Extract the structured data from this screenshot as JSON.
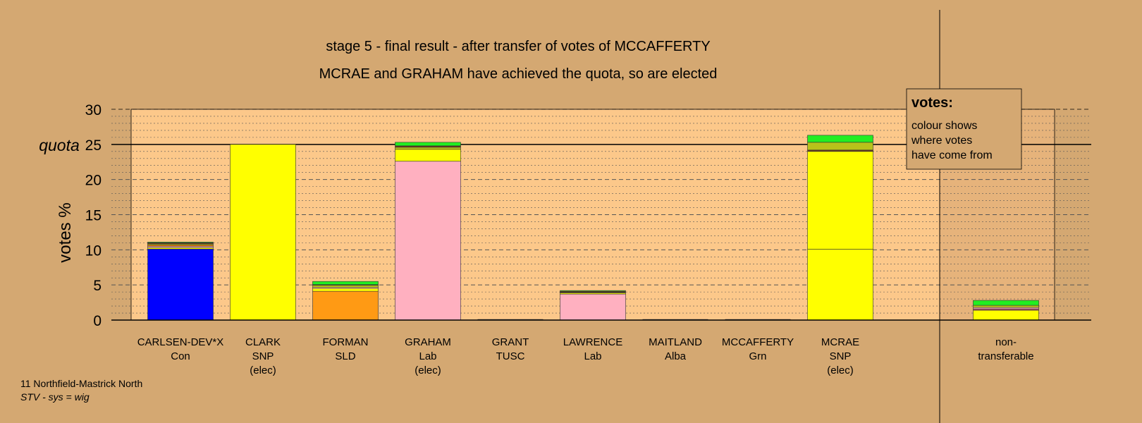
{
  "chart_data": {
    "type": "bar",
    "stacked": true,
    "title": "stage 5 - final result - after transfer of votes of MCCAFFERTY",
    "subtitle": "MCRAE and GRAHAM have achieved the quota, so are elected",
    "ylabel": "votes %",
    "quota_label": "quota",
    "quota": 25,
    "ylim": [
      0,
      30
    ],
    "yticks": [
      "0",
      "5",
      "10",
      "15",
      "20",
      "25",
      "30"
    ],
    "candidates": [
      {
        "name": "CARLSEN-DEV*X",
        "party": "Con",
        "status": "",
        "segments": [
          {
            "value": 10.1,
            "color": "#0000ff"
          },
          {
            "value": 0.2,
            "color": "#ffff00"
          },
          {
            "value": 0.2,
            "color": "#ffb6c1"
          },
          {
            "value": 0.2,
            "color": "#ff8c00"
          },
          {
            "value": 0.15,
            "color": "#b8c21a"
          },
          {
            "value": 0.15,
            "color": "#6a3a1e"
          },
          {
            "value": 0.1,
            "color": "#22ee22"
          }
        ]
      },
      {
        "name": "CLARK",
        "party": "SNP",
        "status": "(elec)",
        "segments": [
          {
            "value": 25.0,
            "color": "#ffff00"
          }
        ]
      },
      {
        "name": "FORMAN",
        "party": "SLD",
        "status": "",
        "segments": [
          {
            "value": 4.1,
            "color": "#ff9a14"
          },
          {
            "value": 0.4,
            "color": "#ffff00"
          },
          {
            "value": 0.15,
            "color": "#ffb6c1"
          },
          {
            "value": 0.3,
            "color": "#b8c21a"
          },
          {
            "value": 0.1,
            "color": "#6a3a1e"
          },
          {
            "value": 0.45,
            "color": "#22ee22"
          }
        ]
      },
      {
        "name": "GRAHAM",
        "party": "Lab",
        "status": "(elec)",
        "segments": [
          {
            "value": 22.6,
            "color": "#ffb0c0"
          },
          {
            "value": 1.7,
            "color": "#ffff00"
          },
          {
            "value": 0.3,
            "color": "#b8c21a"
          },
          {
            "value": 0.2,
            "color": "#6a3a1e"
          },
          {
            "value": 0.5,
            "color": "#22ee22"
          }
        ]
      },
      {
        "name": "GRANT",
        "party": "TUSC",
        "status": "",
        "segments": []
      },
      {
        "name": "LAWRENCE",
        "party": "Lab",
        "status": "",
        "segments": [
          {
            "value": 3.7,
            "color": "#ffb0c0"
          },
          {
            "value": 0.15,
            "color": "#ffff00"
          },
          {
            "value": 0.1,
            "color": "#b8c21a"
          },
          {
            "value": 0.15,
            "color": "#6a3a1e"
          },
          {
            "value": 0.1,
            "color": "#22ee22"
          }
        ]
      },
      {
        "name": "MAITLAND",
        "party": "Alba",
        "status": "",
        "segments": []
      },
      {
        "name": "MCCAFFERTY",
        "party": "Grn",
        "status": "",
        "segments": []
      },
      {
        "name": "MCRAE",
        "party": "SNP",
        "status": "(elec)",
        "segments": [
          {
            "value": 10.1,
            "color": "#ffff00"
          },
          {
            "value": 13.9,
            "color": "#ffff00"
          },
          {
            "value": 0.2,
            "color": "#6a3a1e"
          },
          {
            "value": 1.1,
            "color": "#b8c21a"
          },
          {
            "value": 1.0,
            "color": "#22ee22"
          }
        ]
      },
      {
        "name": "non-",
        "party": "transferable",
        "status": "",
        "segments": [
          {
            "value": 1.4,
            "color": "#ffff00"
          },
          {
            "value": 0.2,
            "color": "#b84a6a"
          },
          {
            "value": 0.2,
            "color": "#ffb6c1"
          },
          {
            "value": 0.3,
            "color": "#b8c21a"
          },
          {
            "value": 0.7,
            "color": "#22ee22"
          }
        ]
      }
    ],
    "legend": {
      "title": "votes:",
      "lines": [
        "colour shows",
        "where votes",
        "have come from"
      ],
      "placement": "top-right"
    }
  },
  "footer": {
    "line1": "11 Northfield-Mastrick North",
    "line2": "STV - sys = wig"
  },
  "colors": {
    "background": "#d4a872",
    "plot_area": "#fcc88a",
    "nontransferable_area": "#e6b37b"
  }
}
